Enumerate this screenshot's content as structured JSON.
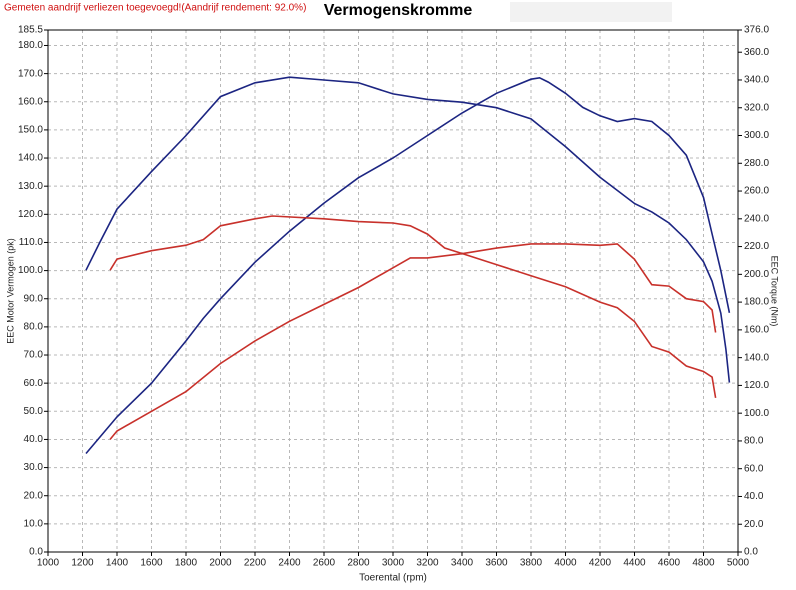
{
  "chart_data": {
    "type": "line",
    "title": "Vermogenskromme",
    "note": "Gemeten aandrijf verliezen toegevoegd!(Aandrijf rendement: 92.0%)",
    "xlabel": "Toerental (rpm)",
    "ylabel": "EEC Motor Vermogen (pk)",
    "y2label": "EEC Torque (Nm)",
    "xlim": [
      1000,
      5000
    ],
    "ylim": [
      0,
      185.5
    ],
    "y2lim": [
      0,
      376
    ],
    "grid": true,
    "xticks": [
      1000,
      1200,
      1400,
      1600,
      1800,
      2000,
      2200,
      2400,
      2600,
      2800,
      3000,
      3200,
      3400,
      3600,
      3800,
      4000,
      4200,
      4400,
      4600,
      4800,
      5000
    ],
    "yticks": [
      {
        "value": 0,
        "label": "0.0"
      },
      {
        "value": 10,
        "label": "10.0"
      },
      {
        "value": 20,
        "label": "20.0"
      },
      {
        "value": 30,
        "label": "30.0"
      },
      {
        "value": 40,
        "label": "40.0"
      },
      {
        "value": 50,
        "label": "50.0"
      },
      {
        "value": 60,
        "label": "60.0"
      },
      {
        "value": 70,
        "label": "70.0"
      },
      {
        "value": 80,
        "label": "80.0"
      },
      {
        "value": 90,
        "label": "90.0"
      },
      {
        "value": 100,
        "label": "100.0"
      },
      {
        "value": 110,
        "label": "110.0"
      },
      {
        "value": 120,
        "label": "120.0"
      },
      {
        "value": 130,
        "label": "130.0"
      },
      {
        "value": 140,
        "label": "140.0"
      },
      {
        "value": 150,
        "label": "150.0"
      },
      {
        "value": 160,
        "label": "160.0"
      },
      {
        "value": 170,
        "label": "170.0"
      },
      {
        "value": 180,
        "label": "180.0"
      },
      {
        "value": 185.5,
        "label": "185.5"
      }
    ],
    "y2ticks": [
      {
        "value": 0,
        "label": "0.0"
      },
      {
        "value": 20,
        "label": "20.0"
      },
      {
        "value": 40,
        "label": "40.0"
      },
      {
        "value": 60,
        "label": "60.0"
      },
      {
        "value": 80,
        "label": "80.0"
      },
      {
        "value": 100,
        "label": "100.0"
      },
      {
        "value": 120,
        "label": "120.0"
      },
      {
        "value": 140,
        "label": "140.0"
      },
      {
        "value": 160,
        "label": "160.0"
      },
      {
        "value": 180,
        "label": "180.0"
      },
      {
        "value": 200,
        "label": "200.0"
      },
      {
        "value": 220,
        "label": "220.0"
      },
      {
        "value": 240,
        "label": "240.0"
      },
      {
        "value": 260,
        "label": "260.0"
      },
      {
        "value": 280,
        "label": "280.0"
      },
      {
        "value": 300,
        "label": "300.0"
      },
      {
        "value": 320,
        "label": "320.0"
      },
      {
        "value": 340,
        "label": "340.0"
      },
      {
        "value": 360,
        "label": "360.0"
      },
      {
        "value": 376,
        "label": "376.0"
      }
    ],
    "series": [
      {
        "color": "#1c2582",
        "x": [
          1220,
          1400,
          1600,
          1800,
          1900,
          2000,
          2200,
          2400,
          2600,
          2800,
          3000,
          3200,
          3400,
          3600,
          3800,
          3850,
          3900,
          4000,
          4100,
          4200,
          4300,
          4400,
          4500,
          4600,
          4700,
          4800,
          4850,
          4900,
          4950
        ],
        "values": [
          35,
          48,
          60,
          75,
          83,
          90,
          103,
          114,
          124,
          133,
          140,
          148,
          156,
          163,
          168,
          168.5,
          167,
          163,
          158,
          155,
          153,
          154,
          153,
          148,
          141,
          126,
          113,
          100,
          85
        ]
      },
      {
        "color": "#1c2582",
        "axis": "y2",
        "x": [
          1220,
          1300,
          1400,
          1600,
          1800,
          2000,
          2200,
          2400,
          2600,
          2800,
          3000,
          3200,
          3400,
          3600,
          3800,
          4000,
          4200,
          4400,
          4500,
          4600,
          4700,
          4800,
          4850,
          4900,
          4930,
          4950
        ],
        "values": [
          203,
          223,
          247,
          274,
          300,
          328,
          338,
          342,
          340,
          338,
          330,
          326,
          324,
          320,
          312,
          292,
          270,
          251,
          245,
          237,
          225,
          209,
          195,
          172,
          146,
          122
        ]
      },
      {
        "color": "#c8312b",
        "x": [
          1360,
          1400,
          1600,
          1800,
          2000,
          2200,
          2400,
          2600,
          2800,
          3000,
          3100,
          3200,
          3400,
          3600,
          3800,
          4000,
          4200,
          4300,
          4400,
          4500,
          4600,
          4700,
          4800,
          4850,
          4870
        ],
        "values": [
          40,
          43,
          50,
          57,
          67,
          75,
          82,
          88,
          94,
          101,
          104.5,
          104.5,
          106,
          108,
          109.5,
          109.5,
          109,
          109.5,
          104,
          95,
          94.5,
          90,
          89,
          86,
          78
        ]
      },
      {
        "color": "#c8312b",
        "axis": "y2",
        "x": [
          1360,
          1400,
          1600,
          1800,
          1900,
          2000,
          2200,
          2300,
          2600,
          2800,
          3000,
          3100,
          3200,
          3300,
          3400,
          3600,
          3800,
          4000,
          4200,
          4300,
          4400,
          4500,
          4600,
          4700,
          4800,
          4850,
          4870
        ],
        "values": [
          203,
          211,
          217,
          221,
          225,
          235,
          240,
          242,
          240,
          238,
          237,
          235,
          229,
          219,
          215,
          207,
          199,
          191,
          180,
          176,
          166,
          148,
          144,
          134,
          130,
          126,
          111
        ]
      }
    ]
  }
}
